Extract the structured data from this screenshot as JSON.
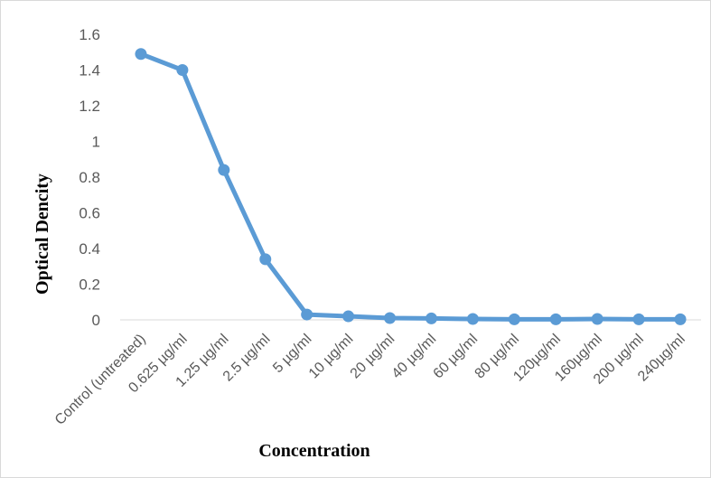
{
  "chart_data": {
    "type": "line",
    "title": "",
    "xlabel": "Concentration",
    "ylabel": "Optical Dencity",
    "categories": [
      "Control (untreated)",
      "0.625 µg/ml",
      "1.25 µg/ml",
      "2.5 µg/ml",
      "5 µg/ml",
      "10 µg/ml",
      "20 µg/ml",
      "40 µg/ml",
      "60 µg/ml",
      "80 µg/ml",
      "120µg/ml",
      "160µg/ml",
      "200 µg/ml",
      "240µg/ml"
    ],
    "series": [
      {
        "values": [
          1.49,
          1.4,
          0.84,
          0.34,
          0.03,
          0.02,
          0.01,
          0.008,
          0.005,
          0.003,
          0.003,
          0.005,
          0.003,
          0.003
        ],
        "color": "#5b9bd5"
      }
    ],
    "ylim": [
      0,
      1.6
    ],
    "yticks": [
      "0",
      "0.2",
      "0.4",
      "0.6",
      "0.8",
      "1",
      "1.2",
      "1.4",
      "1.6"
    ],
    "grid": false,
    "legend": "none",
    "markers": "circle"
  }
}
